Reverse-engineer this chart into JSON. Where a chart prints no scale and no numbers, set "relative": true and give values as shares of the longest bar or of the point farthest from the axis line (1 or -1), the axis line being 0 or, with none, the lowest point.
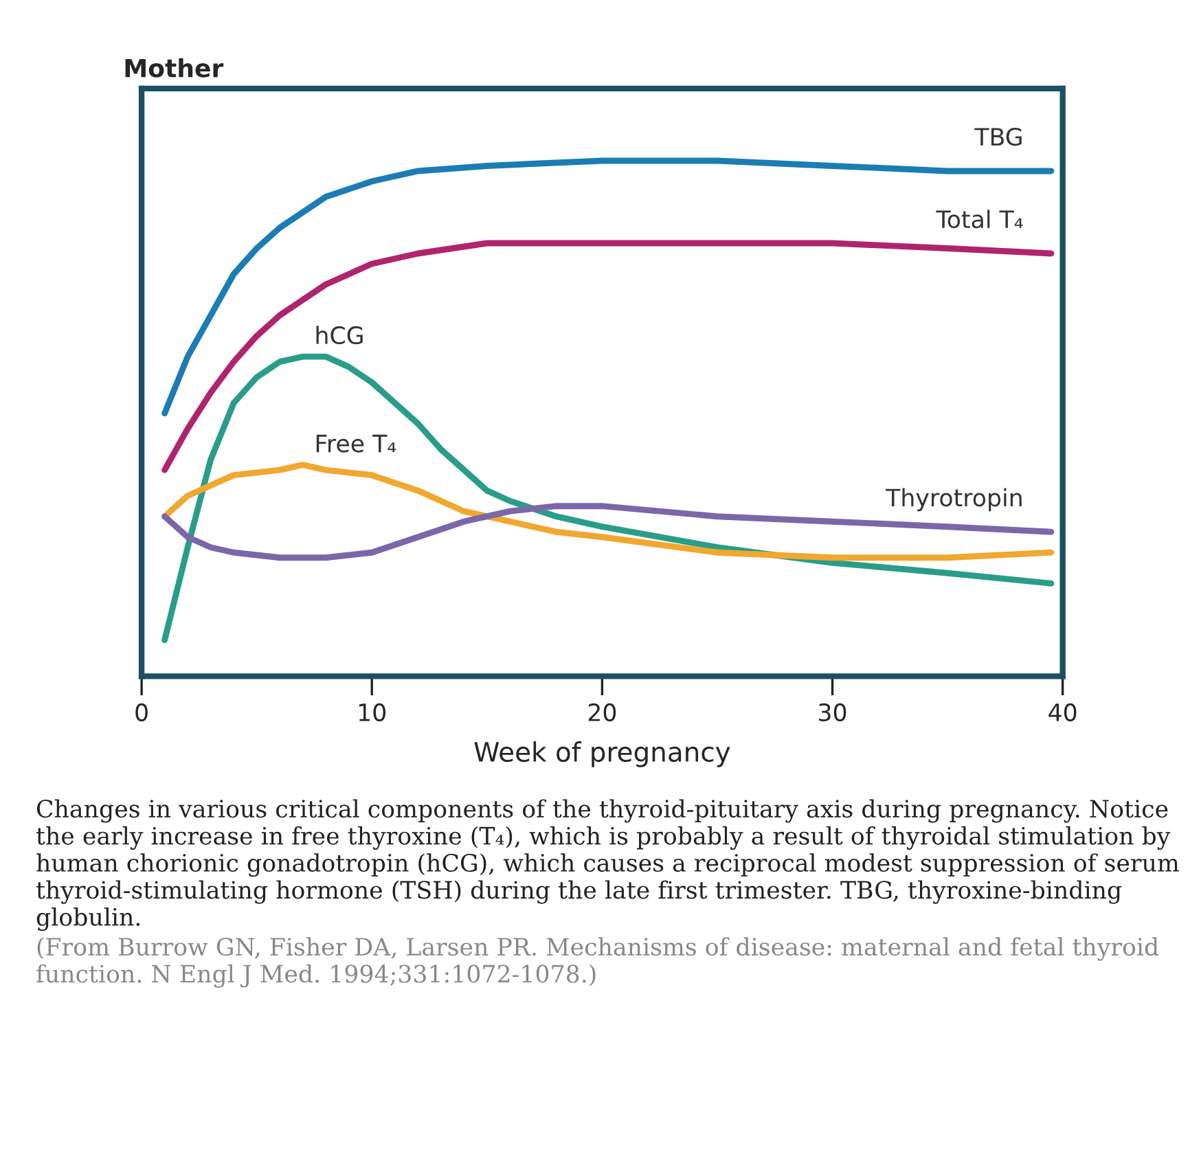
{
  "chart_data": {
    "type": "line",
    "title": "Mother",
    "xlabel": "Week of pregnancy",
    "relative": true,
    "xlim": [
      0,
      40
    ],
    "xticks": [
      0,
      10,
      20,
      30,
      40
    ],
    "grid": false,
    "legend": false,
    "marker": "none",
    "line_style": "solid",
    "annotations": [
      "Changes in various critical components of the thyroid-pituitary axis during pregnancy. Notice the early increase in free thyroxine (T₄), which is probably a result of thyroidal stimulation by human chorionic gonadotropin (hCG), which causes a reciprocal modest suppression of serum thyroid-stimulating hormone (TSH) during the late first trimester. TBG, thyroxine-binding globulin.",
      "(From Burrow GN, Fisher DA, Larsen PR. Mechanisms of disease: maternal and fetal thyroid function. N Engl J Med. 1994;331:1072-1078.)"
    ],
    "series": [
      {
        "name": "TBG",
        "color": "#1b7db3",
        "x": [
          1,
          2,
          3,
          4,
          5,
          6,
          8,
          10,
          12,
          15,
          20,
          25,
          30,
          35,
          39.5
        ],
        "values": [
          0.51,
          0.62,
          0.7,
          0.78,
          0.83,
          0.87,
          0.93,
          0.96,
          0.98,
          0.99,
          1.0,
          1.0,
          0.99,
          0.98,
          0.98
        ]
      },
      {
        "name": "Total T₄",
        "color": "#b0246f",
        "x": [
          1,
          2,
          3,
          4,
          5,
          6,
          8,
          10,
          12,
          15,
          20,
          25,
          30,
          35,
          39.5
        ],
        "values": [
          0.4,
          0.48,
          0.55,
          0.61,
          0.66,
          0.7,
          0.76,
          0.8,
          0.82,
          0.84,
          0.84,
          0.84,
          0.84,
          0.83,
          0.82
        ]
      },
      {
        "name": "hCG",
        "color": "#2a9d8a",
        "x": [
          1,
          2,
          3,
          4,
          5,
          6,
          7,
          8,
          9,
          10,
          11,
          12,
          13,
          14,
          15,
          16,
          18,
          20,
          25,
          30,
          35,
          39.5
        ],
        "values": [
          0.07,
          0.25,
          0.42,
          0.53,
          0.58,
          0.61,
          0.62,
          0.62,
          0.6,
          0.57,
          0.53,
          0.49,
          0.44,
          0.4,
          0.36,
          0.34,
          0.31,
          0.29,
          0.25,
          0.22,
          0.2,
          0.18
        ]
      },
      {
        "name": "Free T₄",
        "color": "#f0a830",
        "x": [
          1,
          2,
          3,
          4,
          6,
          7,
          8,
          10,
          12,
          14,
          16,
          18,
          20,
          25,
          30,
          35,
          39.5
        ],
        "values": [
          0.31,
          0.35,
          0.37,
          0.39,
          0.4,
          0.41,
          0.4,
          0.39,
          0.36,
          0.32,
          0.3,
          0.28,
          0.27,
          0.24,
          0.23,
          0.23,
          0.24
        ]
      },
      {
        "name": "Thyrotropin",
        "color": "#7a67a8",
        "x": [
          1,
          2,
          3,
          4,
          6,
          8,
          10,
          12,
          14,
          16,
          18,
          20,
          25,
          30,
          35,
          39.5
        ],
        "values": [
          0.31,
          0.27,
          0.25,
          0.24,
          0.23,
          0.23,
          0.24,
          0.27,
          0.3,
          0.32,
          0.33,
          0.33,
          0.31,
          0.3,
          0.29,
          0.28
        ]
      }
    ]
  }
}
